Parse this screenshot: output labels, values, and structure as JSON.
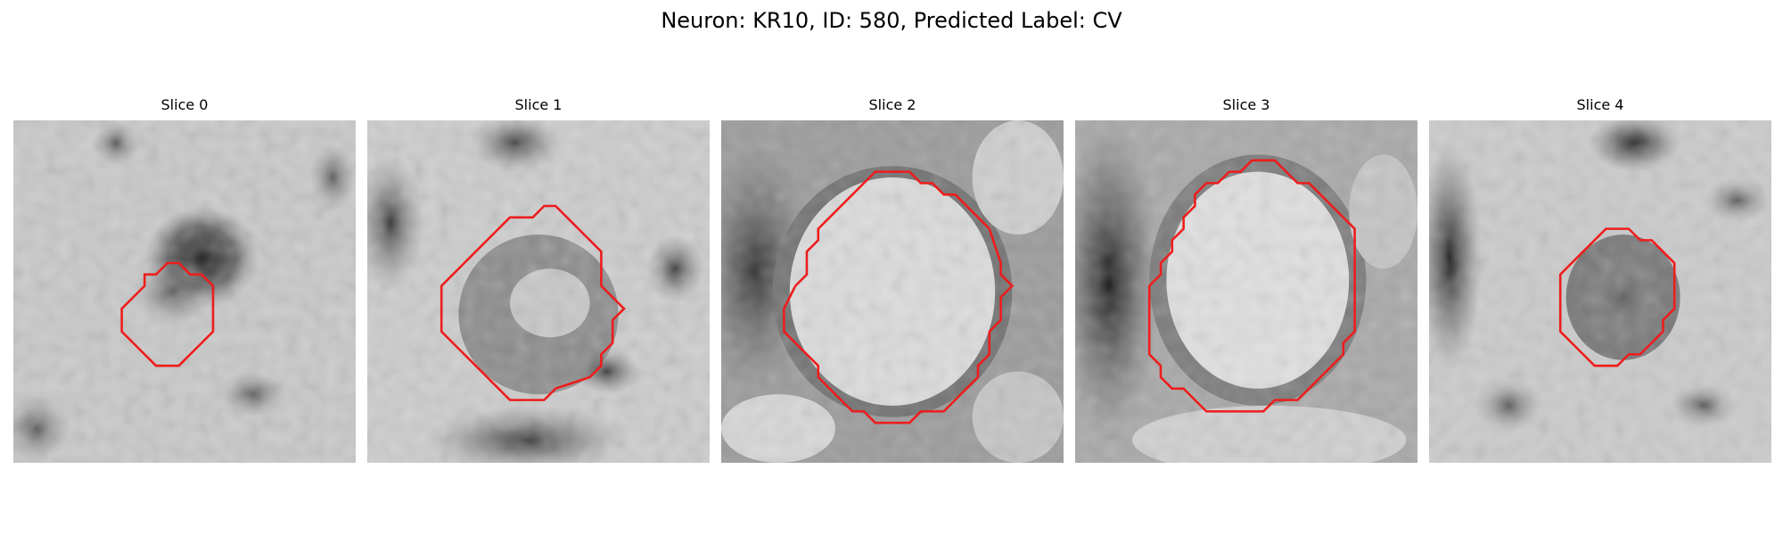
{
  "figure": {
    "title": "Neuron: KR10, ID: 580, Predicted Label: CV"
  },
  "colors": {
    "contour": "#ee1c1c",
    "background": "#ffffff"
  },
  "panels": [
    {
      "title": "Slice 0"
    },
    {
      "title": "Slice 1"
    },
    {
      "title": "Slice 2"
    },
    {
      "title": "Slice 3"
    },
    {
      "title": "Slice 4"
    }
  ]
}
